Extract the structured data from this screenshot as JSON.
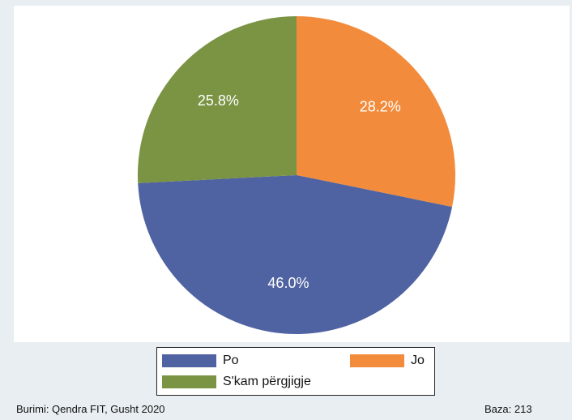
{
  "chart_data": {
    "type": "pie",
    "categories": [
      "Po",
      "Jo",
      "S'kam përgjigje"
    ],
    "values": [
      46.0,
      28.2,
      25.8
    ],
    "value_labels": [
      "46.0%",
      "28.2%",
      "25.8%"
    ],
    "colors": [
      "#4f62a1",
      "#f28c3c",
      "#7a9444"
    ],
    "start_angle_deg": 0,
    "direction": "clockwise-from-top, in the order Jo, Po, S'kam përgjigje",
    "legend_position": "bottom"
  },
  "legend": {
    "items": [
      {
        "label": "Po",
        "color": "#4f62a1"
      },
      {
        "label": "Jo",
        "color": "#f28c3c"
      },
      {
        "label": "S'kam përgjigje",
        "color": "#7a9444"
      }
    ]
  },
  "footer": {
    "source": "Burimi: Qendra FIT, Gusht 2020",
    "base": "Baza: 213"
  }
}
